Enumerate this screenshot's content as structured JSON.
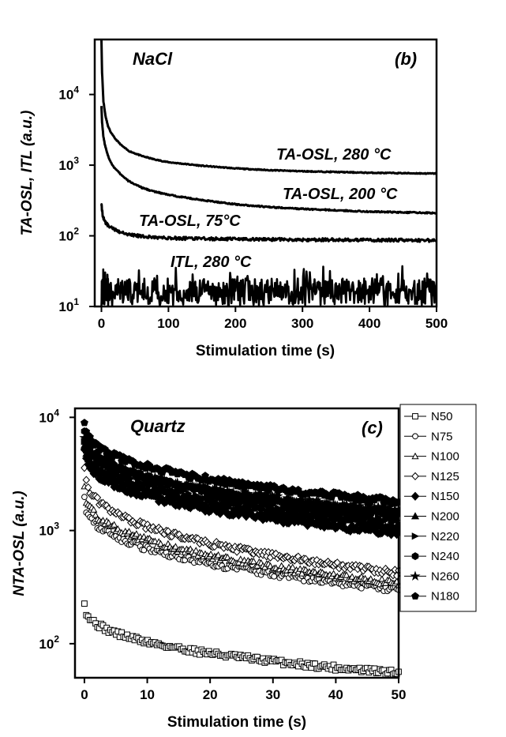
{
  "chart_data": [
    {
      "type": "line",
      "panel_label": "(b)",
      "title": "NaCl",
      "xlabel": "Stimulation time (s)",
      "ylabel": "TA-OSL, ITL (a.u.)",
      "yscale": "log",
      "xlim": [
        -10,
        500
      ],
      "ylim": [
        10,
        60000
      ],
      "xticks": [
        0,
        100,
        200,
        300,
        400,
        500
      ],
      "yticks": [
        {
          "value": 10,
          "base": "10",
          "exp": "1"
        },
        {
          "value": 100,
          "base": "10",
          "exp": "2"
        },
        {
          "value": 1000,
          "base": "10",
          "exp": "3"
        },
        {
          "value": 10000,
          "base": "10",
          "exp": "4"
        }
      ],
      "series": [
        {
          "name": "TA-OSL, 280 °C",
          "x": [
            0,
            1,
            3,
            6,
            10,
            15,
            20,
            30,
            40,
            60,
            80,
            100,
            150,
            200,
            250,
            300,
            350,
            400,
            450,
            500
          ],
          "y": [
            60000,
            20000,
            8000,
            5000,
            3500,
            2800,
            2400,
            1900,
            1600,
            1350,
            1200,
            1100,
            980,
            900,
            850,
            820,
            800,
            780,
            770,
            760
          ]
        },
        {
          "name": "TA-OSL, 200 °C",
          "x": [
            0,
            1,
            3,
            6,
            10,
            15,
            20,
            30,
            40,
            60,
            80,
            100,
            150,
            200,
            250,
            300,
            350,
            400,
            450,
            500
          ],
          "y": [
            7000,
            4000,
            2500,
            1800,
            1350,
            1050,
            900,
            720,
            600,
            480,
            420,
            380,
            320,
            280,
            255,
            240,
            230,
            220,
            215,
            210
          ]
        },
        {
          "name": "TA-OSL, 75°C",
          "x": [
            0,
            2,
            5,
            10,
            15,
            20,
            30,
            40,
            60,
            80,
            100,
            150,
            200,
            250,
            300,
            350,
            400,
            450,
            500
          ],
          "y": [
            280,
            190,
            160,
            140,
            130,
            122,
            112,
            105,
            98,
            95,
            93,
            91,
            90,
            89,
            88,
            88,
            87,
            87,
            86
          ]
        },
        {
          "name": "ITL, 280 °C",
          "x": [
            0,
            500
          ],
          "y": [
            16,
            16
          ]
        }
      ],
      "annotations": [
        "TA-OSL, 280 °C",
        "TA-OSL, 200 °C",
        "TA-OSL, 75°C",
        "ITL, 280 °C"
      ]
    },
    {
      "type": "scatter",
      "panel_label": "(c)",
      "title": "Quartz",
      "xlabel": "Stimulation time (s)",
      "ylabel": "NTA-OSL (a.u.)",
      "yscale": "log",
      "xlim": [
        -1.5,
        50
      ],
      "ylim": [
        50,
        12000
      ],
      "xticks": [
        0,
        10,
        20,
        30,
        40,
        50
      ],
      "yticks": [
        {
          "value": 100,
          "base": "10",
          "exp": "2"
        },
        {
          "value": 1000,
          "base": "10",
          "exp": "3"
        },
        {
          "value": 10000,
          "base": "10",
          "exp": "4"
        }
      ],
      "legend_position": "right-outside",
      "series": [
        {
          "name": "N50",
          "marker": "square-open",
          "y0": 240,
          "yend": 55
        },
        {
          "name": "N75",
          "marker": "circle-open",
          "y0": 2100,
          "yend": 300
        },
        {
          "name": "N100",
          "marker": "triangle-open",
          "y0": 2600,
          "yend": 340
        },
        {
          "name": "N125",
          "marker": "diamond-open",
          "y0": 3800,
          "yend": 420
        },
        {
          "name": "N150",
          "marker": "diamond-filled",
          "y0": 5500,
          "yend": 950
        },
        {
          "name": "N200",
          "marker": "triangle-filled",
          "y0": 6000,
          "yend": 1100
        },
        {
          "name": "N220",
          "marker": "triangle-right-filled",
          "y0": 6500,
          "yend": 1200
        },
        {
          "name": "N240",
          "marker": "hexagon-filled",
          "y0": 8000,
          "yend": 1350
        },
        {
          "name": "N260",
          "marker": "star-filled",
          "y0": 7000,
          "yend": 1500
        },
        {
          "name": "N180",
          "marker": "pentagon-filled",
          "y0": 9500,
          "yend": 1800
        }
      ]
    }
  ]
}
